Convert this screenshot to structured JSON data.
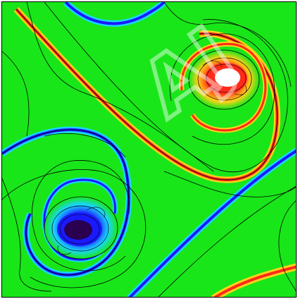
{
  "colors": {
    "background": "#19e619",
    "contour": "#000000",
    "positive_core": "#ffffff",
    "positive_mid": "#ff2a1a",
    "positive_outer": "#ffd21a",
    "negative_core": "#2a0050",
    "negative_mid": "#1a1aff",
    "negative_outer": "#19d6ff",
    "watermark": "#ffffff"
  },
  "watermark": {
    "text": "AJ"
  }
}
